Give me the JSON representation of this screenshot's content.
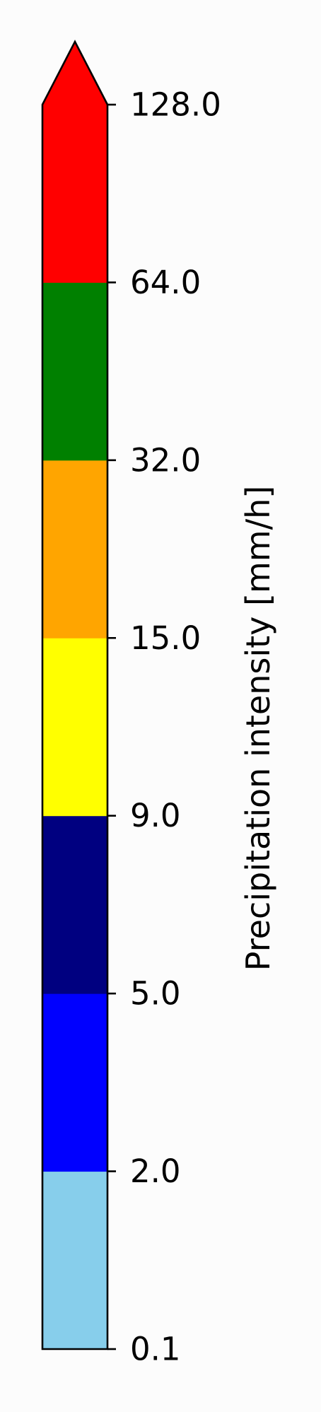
{
  "chart_data": {
    "type": "colorbar",
    "orientation": "vertical",
    "label": "Precipitation intensity [mm/h]",
    "extend": "max",
    "boundaries": [
      0.1,
      2.0,
      5.0,
      9.0,
      15.0,
      32.0,
      64.0,
      128.0
    ],
    "tick_labels": [
      "0.1",
      "2.0",
      "5.0",
      "9.0",
      "15.0",
      "32.0",
      "64.0",
      "128.0"
    ],
    "colors": [
      "#87ceeb",
      "#0000ff",
      "#000080",
      "#ffff00",
      "#ffa500",
      "#008000",
      "#ff0000"
    ],
    "extend_color": "#ff0000",
    "outline_color": "#000000",
    "background_color": "#fcfcfc"
  }
}
